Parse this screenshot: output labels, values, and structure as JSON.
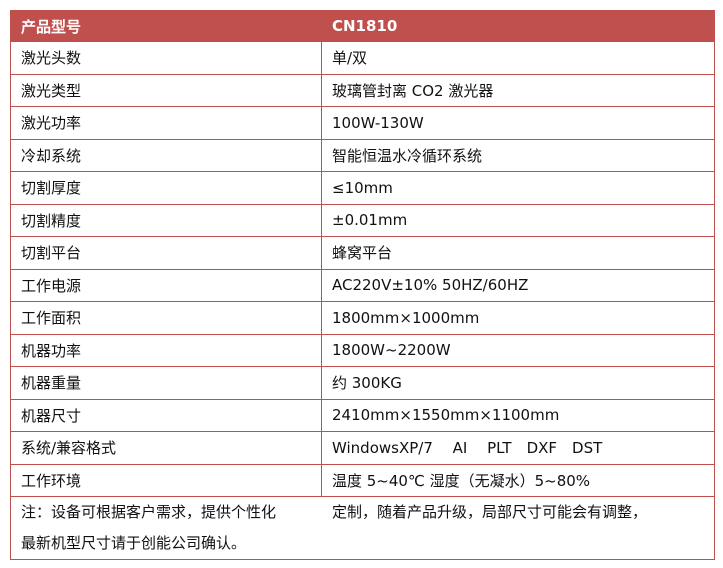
{
  "header": {
    "label": "产品型号",
    "value": "CN1810"
  },
  "rows": [
    {
      "label": "激光头数",
      "value": "单/双"
    },
    {
      "label": "激光类型",
      "value": "玻璃管封离 CO2 激光器"
    },
    {
      "label": "激光功率",
      "value": "100W-130W"
    },
    {
      "label": "冷却系统",
      "value": "智能恒温水冷循环系统"
    },
    {
      "label": "切割厚度",
      "value": "≤10mm"
    },
    {
      "label": "切割精度",
      "value": "±0.01mm"
    },
    {
      "label": "切割平台",
      "value": "蜂窝平台"
    },
    {
      "label": "工作电源",
      "value": "AC220V±10% 50HZ/60HZ"
    },
    {
      "label": "工作面积",
      "value": "1800mm×1000mm"
    },
    {
      "label": "机器功率",
      "value": "1800W~2200W"
    },
    {
      "label": "机器重量",
      "value": "约 300KG"
    },
    {
      "label": "机器尺寸",
      "value": "2410mm×1550mm×1100mm"
    },
    {
      "label": "系统/兼容格式",
      "value": "WindowsXP/7　 AI　 PLT　DXF　DST"
    },
    {
      "label": "工作环境",
      "value": "温度 5~40℃ 湿度（无凝水）5~80%"
    }
  ],
  "note": {
    "line1_a": "注：设备可根据客户需求，提供个性化",
    "line1_b": "定制，随着产品升级，局部尺寸可能会有调整，",
    "line2": "最新机型尺寸请于创能公司确认。"
  },
  "colors": {
    "accent": "#c0504d"
  }
}
